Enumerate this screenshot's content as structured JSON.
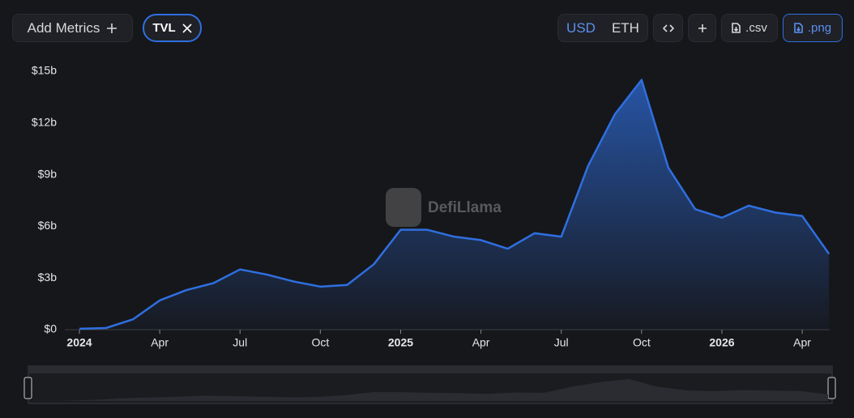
{
  "toolbar": {
    "add_metrics": "Add Metrics",
    "currencies": [
      "USD",
      "ETH"
    ],
    "csv": ".csv",
    "png": ".png"
  },
  "watermark": "DefiLlama",
  "chart_data": {
    "type": "area",
    "x": [
      "2024-01",
      "2024-02",
      "2024-03",
      "2024-04",
      "2024-05",
      "2024-06",
      "2024-07",
      "2024-08",
      "2024-09",
      "2024-10",
      "2024-11",
      "2024-12",
      "2025-01",
      "2025-02",
      "2025-03",
      "2025-04",
      "2025-05",
      "2025-06",
      "2025-07",
      "2025-08",
      "2025-09",
      "2025-10",
      "2025-11",
      "2025-12",
      "2026-01",
      "2026-02",
      "2026-03",
      "2026-04",
      "2026-05"
    ],
    "series": [
      {
        "name": "TVL",
        "color": "#2f6fe0",
        "values": [
          0.05,
          0.1,
          0.6,
          1.7,
          2.3,
          2.7,
          3.5,
          3.2,
          2.8,
          2.5,
          2.6,
          3.8,
          5.8,
          5.8,
          5.4,
          5.2,
          4.7,
          5.6,
          5.4,
          9.5,
          12.5,
          14.5,
          9.4,
          7.0,
          6.5,
          7.2,
          6.8,
          6.6,
          4.4
        ]
      }
    ],
    "ylim": [
      0,
      15
    ],
    "yticks": [
      {
        "value": 0,
        "label": "$0"
      },
      {
        "value": 3,
        "label": "$3b"
      },
      {
        "value": 6,
        "label": "$6b"
      },
      {
        "value": 9,
        "label": "$9b"
      },
      {
        "value": 12,
        "label": "$12b"
      },
      {
        "value": 15,
        "label": "$15b"
      }
    ],
    "xticks": [
      {
        "value": "2024-01",
        "label": "2024"
      },
      {
        "value": "2024-04",
        "label": "Apr"
      },
      {
        "value": "2024-07",
        "label": "Jul"
      },
      {
        "value": "2024-10",
        "label": "Oct"
      },
      {
        "value": "2025-01",
        "label": "2025"
      },
      {
        "value": "2025-04",
        "label": "Apr"
      },
      {
        "value": "2025-07",
        "label": "Jul"
      },
      {
        "value": "2025-10",
        "label": "Oct"
      },
      {
        "value": "2026-01",
        "label": "2026"
      },
      {
        "value": "2026-04",
        "label": "Apr"
      }
    ]
  }
}
